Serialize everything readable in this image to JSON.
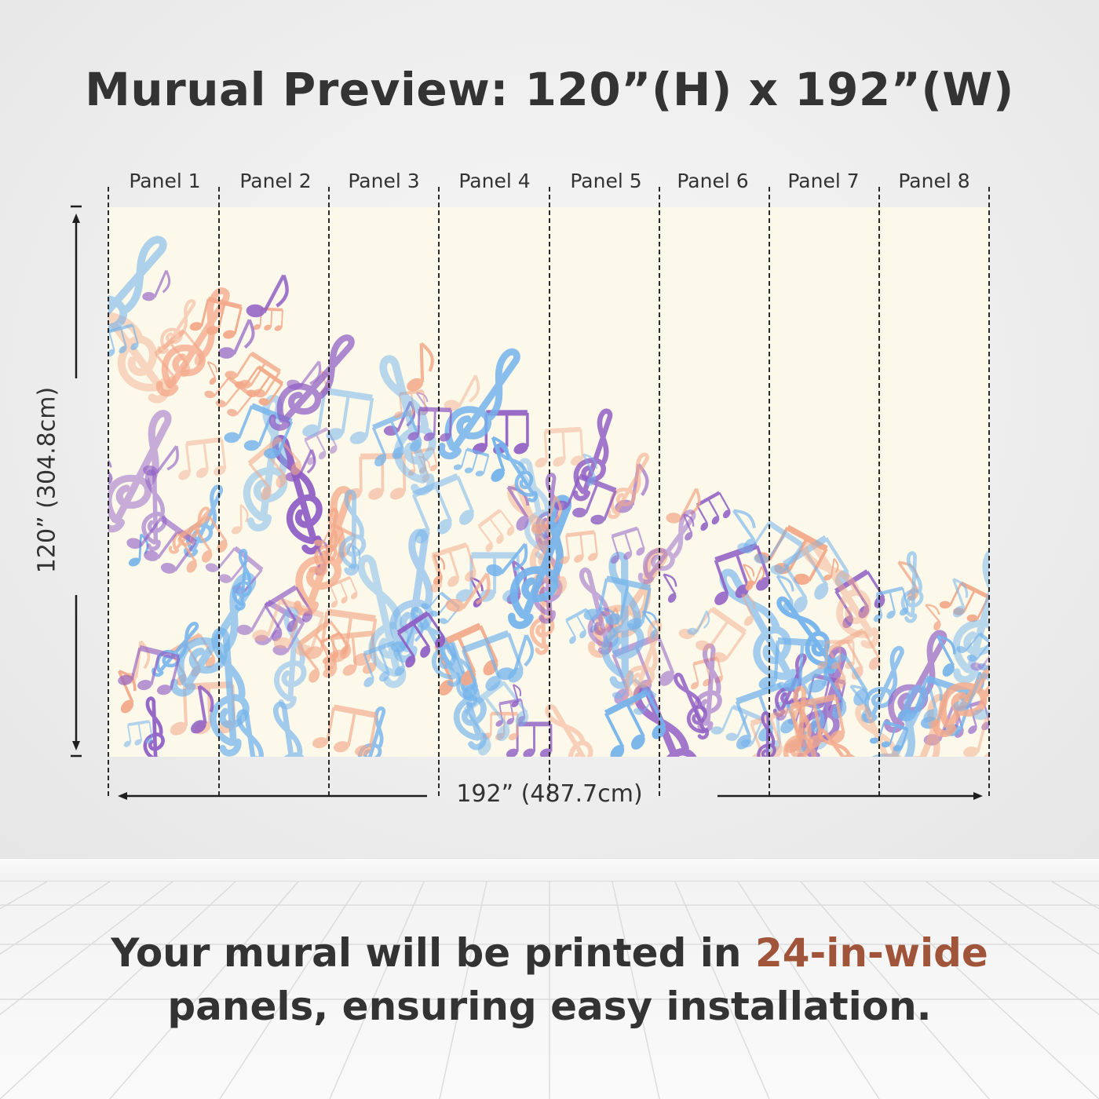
{
  "title": "Murual Preview: 120”(H) x 192”(W)",
  "panels": [
    "Panel 1",
    "Panel 2",
    "Panel 3",
    "Panel 4",
    "Panel 5",
    "Panel 6",
    "Panel 7",
    "Panel 8"
  ],
  "height_label": "120” (304.8cm)",
  "width_label": "192” (487.7cm)",
  "caption": {
    "line1_prefix": "Your mural will be printed in ",
    "line1_accent": "24-in-wide",
    "line2": "panels, ensuring easy installation."
  },
  "colors": {
    "accent": "#a0553a",
    "mural_background": "#fcf9ea",
    "note_purple": "#8e5cc4",
    "note_blue": "#74b3ec",
    "note_orange": "#f3a98a"
  },
  "mural_motif": [
    "treble-clef-icon",
    "eighth-note-icon",
    "beamed-notes-icon"
  ]
}
